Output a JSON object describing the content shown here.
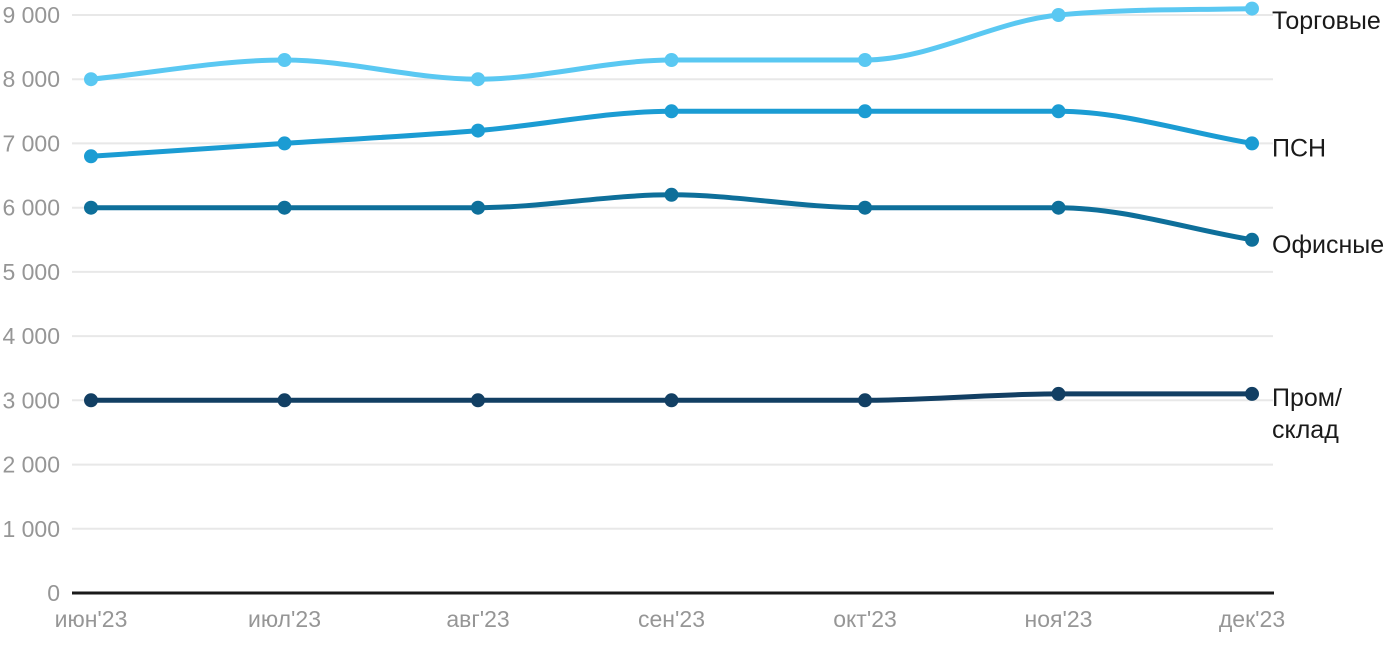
{
  "chart_data": {
    "type": "line",
    "title": "",
    "curve": "smoothed-monotone",
    "grid": "horizontal",
    "legend_position": "right-of-line-end",
    "x_categories": [
      "июн'23",
      "июл'23",
      "авг'23",
      "сен'23",
      "окт'23",
      "ноя'23",
      "дек'23"
    ],
    "series": [
      {
        "id": "torgovye",
        "name": "Торговые",
        "label_lines": [
          "Торговые"
        ],
        "color": "#5AC8F2",
        "values": [
          8000,
          8300,
          8000,
          8300,
          8300,
          9000,
          9100
        ]
      },
      {
        "id": "psn",
        "name": "ПСН",
        "label_lines": [
          "ПСН"
        ],
        "color": "#1B9CD3",
        "values": [
          6800,
          7000,
          7200,
          7500,
          7500,
          7500,
          7000
        ]
      },
      {
        "id": "ofisnye",
        "name": "Офисные",
        "label_lines": [
          "Офисные"
        ],
        "color": "#0E6F9A",
        "values": [
          6000,
          6000,
          6000,
          6200,
          6000,
          6000,
          5500
        ]
      },
      {
        "id": "prom-sklad",
        "name": "Пром/склад",
        "label_lines": [
          "Пром/",
          "склад"
        ],
        "color": "#123F63",
        "values": [
          3000,
          3000,
          3000,
          3000,
          3000,
          3100,
          3100
        ]
      }
    ],
    "y_ticks": [
      {
        "value": 0,
        "label": "0"
      },
      {
        "value": 1000,
        "label": "1 000"
      },
      {
        "value": 2000,
        "label": "2 000"
      },
      {
        "value": 3000,
        "label": "3 000"
      },
      {
        "value": 4000,
        "label": "4 000"
      },
      {
        "value": 5000,
        "label": "5 000"
      },
      {
        "value": 6000,
        "label": "6 000"
      },
      {
        "value": 7000,
        "label": "7 000"
      },
      {
        "value": 8000,
        "label": "8 000"
      },
      {
        "value": 9000,
        "label": "9 000"
      }
    ],
    "ylim": [
      0,
      9200
    ]
  },
  "style_colors": {
    "background": "#FFFFFF",
    "gridline": "#E8E8E8",
    "axis_line": "#1A1A1A",
    "tick_label": "#969696",
    "legend_label": "#1A1A1A"
  }
}
